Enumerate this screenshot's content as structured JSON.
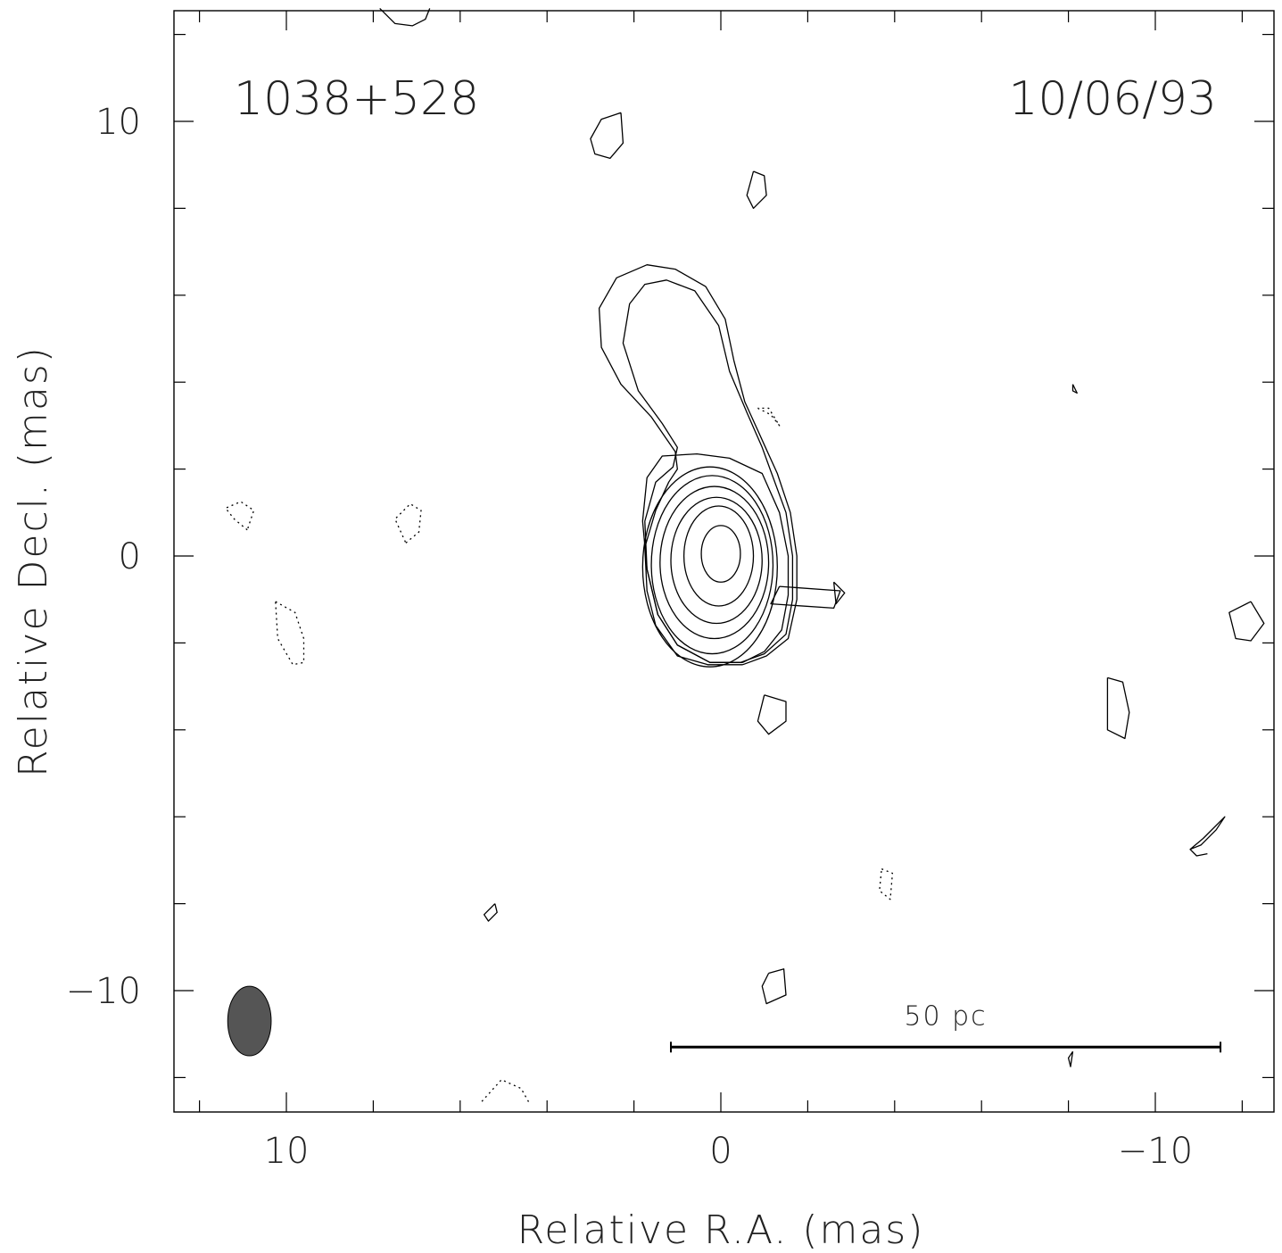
{
  "chart_data": {
    "type": "contour",
    "source_label": "1038+528",
    "date_label": "10/06/93",
    "xlabel": "Relative R.A. (mas)",
    "ylabel": "Relative Decl. (mas)",
    "xlim": [
      12.6,
      -12.7
    ],
    "ylim": [
      -12.8,
      12.6
    ],
    "x_ticks": [
      {
        "value": 10,
        "label": "10"
      },
      {
        "value": 0,
        "label": "0"
      },
      {
        "value": -10,
        "label": "−10"
      }
    ],
    "y_ticks": [
      {
        "value": 10,
        "label": "10"
      },
      {
        "value": 0,
        "label": "0"
      },
      {
        "value": -10,
        "label": "−10"
      }
    ],
    "minor_tick_step": 2,
    "peak": {
      "x": 0.0,
      "y": 0.05
    },
    "core_contours": [
      {
        "cx": 0.0,
        "cy": 0.05,
        "rx": 0.45,
        "ry": 0.65
      },
      {
        "cx": 0.05,
        "cy": 0.0,
        "rx": 0.8,
        "ry": 1.15
      },
      {
        "cx": 0.1,
        "cy": -0.1,
        "rx": 1.05,
        "ry": 1.45
      },
      {
        "cx": 0.15,
        "cy": -0.15,
        "rx": 1.25,
        "ry": 1.75
      },
      {
        "cx": 0.2,
        "cy": -0.2,
        "rx": 1.4,
        "ry": 2.05
      },
      {
        "cx": 0.25,
        "cy": -0.25,
        "rx": 1.55,
        "ry": 2.3
      }
    ],
    "extended_contours": [
      [
        [
          -0.5,
          -2.45
        ],
        [
          -1.0,
          -2.2
        ],
        [
          -1.4,
          -1.7
        ],
        [
          -1.55,
          -0.9
        ],
        [
          -1.55,
          0.0
        ],
        [
          -1.35,
          1.0
        ],
        [
          -0.95,
          1.9
        ],
        [
          -0.2,
          2.25
        ],
        [
          0.55,
          2.35
        ],
        [
          1.35,
          2.3
        ],
        [
          1.7,
          1.8
        ],
        [
          1.8,
          0.8
        ],
        [
          1.7,
          -0.3
        ],
        [
          1.45,
          -1.35
        ],
        [
          1.0,
          -2.05
        ],
        [
          0.25,
          -2.45
        ],
        [
          -0.5,
          -2.45
        ]
      ],
      [
        [
          -0.45,
          -2.45
        ],
        [
          -1.0,
          -2.25
        ],
        [
          -1.5,
          -1.8
        ],
        [
          -1.65,
          -1.0
        ],
        [
          -1.65,
          0.0
        ],
        [
          -1.5,
          1.0
        ],
        [
          -1.15,
          1.95
        ],
        [
          -0.95,
          2.5
        ],
        [
          -0.6,
          3.3
        ],
        [
          -0.2,
          4.25
        ],
        [
          0.05,
          5.3
        ],
        [
          0.6,
          6.1
        ],
        [
          1.25,
          6.35
        ],
        [
          1.75,
          6.25
        ],
        [
          2.1,
          5.8
        ],
        [
          2.25,
          4.9
        ],
        [
          1.9,
          3.8
        ],
        [
          1.35,
          3.05
        ],
        [
          1.0,
          2.5
        ],
        [
          1.1,
          2.05
        ],
        [
          1.5,
          1.7
        ],
        [
          1.75,
          0.8
        ],
        [
          1.7,
          -0.3
        ],
        [
          1.45,
          -1.35
        ],
        [
          1.0,
          -2.05
        ],
        [
          0.25,
          -2.45
        ],
        [
          -0.45,
          -2.45
        ]
      ],
      [
        [
          -0.5,
          -2.5
        ],
        [
          -1.05,
          -2.3
        ],
        [
          -1.55,
          -1.9
        ],
        [
          -1.75,
          -1.0
        ],
        [
          -1.75,
          0.0
        ],
        [
          -1.6,
          1.0
        ],
        [
          -1.3,
          1.9
        ],
        [
          -1.05,
          2.45
        ],
        [
          -0.8,
          3.0
        ],
        [
          -0.55,
          3.55
        ],
        [
          -0.3,
          4.5
        ],
        [
          -0.1,
          5.45
        ],
        [
          0.35,
          6.2
        ],
        [
          1.05,
          6.6
        ],
        [
          1.7,
          6.7
        ],
        [
          2.4,
          6.4
        ],
        [
          2.8,
          5.7
        ],
        [
          2.75,
          4.8
        ],
        [
          2.3,
          3.95
        ],
        [
          1.6,
          3.2
        ],
        [
          1.05,
          2.4
        ],
        [
          1.0,
          2.0
        ],
        [
          1.2,
          1.7
        ],
        [
          1.5,
          1.05
        ],
        [
          1.75,
          0.2
        ],
        [
          1.7,
          -0.8
        ],
        [
          1.5,
          -1.6
        ],
        [
          1.0,
          -2.3
        ],
        [
          0.3,
          -2.5
        ],
        [
          -0.5,
          -2.5
        ]
      ]
    ],
    "noise_contours_positive": [
      [
        [
          6.7,
          12.6
        ],
        [
          6.8,
          12.35
        ],
        [
          7.1,
          12.2
        ],
        [
          7.5,
          12.25
        ],
        [
          7.85,
          12.6
        ]
      ],
      [
        [
          2.3,
          10.2
        ],
        [
          2.75,
          10.05
        ],
        [
          3.0,
          9.6
        ],
        [
          2.9,
          9.25
        ],
        [
          2.55,
          9.15
        ],
        [
          2.25,
          9.5
        ],
        [
          2.3,
          10.2
        ]
      ],
      [
        [
          -0.75,
          8.85
        ],
        [
          -1.0,
          8.75
        ],
        [
          -1.05,
          8.3
        ],
        [
          -0.75,
          8.0
        ],
        [
          -0.6,
          8.3
        ],
        [
          -0.75,
          8.85
        ]
      ],
      [
        [
          -1.35,
          -0.7
        ],
        [
          -1.15,
          -1.1
        ],
        [
          -2.6,
          -1.2
        ],
        [
          -2.75,
          -0.8
        ],
        [
          -1.35,
          -0.7
        ]
      ],
      [
        [
          -1.0,
          -3.2
        ],
        [
          -1.5,
          -3.35
        ],
        [
          -1.5,
          -3.8
        ],
        [
          -1.1,
          -4.1
        ],
        [
          -0.85,
          -3.8
        ],
        [
          -1.0,
          -3.2
        ]
      ],
      [
        [
          -2.6,
          -0.6
        ],
        [
          -2.85,
          -0.85
        ],
        [
          -2.65,
          -1.1
        ],
        [
          -2.6,
          -0.6
        ]
      ],
      [
        [
          5.2,
          -8.0
        ],
        [
          5.45,
          -8.25
        ],
        [
          5.35,
          -8.4
        ],
        [
          5.15,
          -8.2
        ],
        [
          5.2,
          -8.0
        ]
      ],
      [
        [
          -1.1,
          -9.6
        ],
        [
          -1.45,
          -9.5
        ],
        [
          -1.5,
          -10.1
        ],
        [
          -1.05,
          -10.3
        ],
        [
          -0.95,
          -9.9
        ],
        [
          -1.1,
          -9.6
        ]
      ],
      [
        [
          -8.1,
          3.95
        ],
        [
          -8.2,
          3.75
        ],
        [
          -8.1,
          3.8
        ],
        [
          -8.1,
          3.95
        ]
      ],
      [
        [
          -8.9,
          -2.8
        ],
        [
          -9.25,
          -2.9
        ],
        [
          -9.4,
          -3.6
        ],
        [
          -9.3,
          -4.2
        ],
        [
          -8.9,
          -4.0
        ],
        [
          -8.9,
          -2.8
        ]
      ],
      [
        [
          -12.2,
          -1.05
        ],
        [
          -11.7,
          -1.3
        ],
        [
          -11.85,
          -1.9
        ],
        [
          -12.2,
          -1.95
        ],
        [
          -12.5,
          -1.55
        ],
        [
          -12.2,
          -1.05
        ]
      ],
      [
        [
          -10.8,
          -6.75
        ],
        [
          -11.1,
          -6.5
        ],
        [
          -11.6,
          -6.0
        ],
        [
          -11.4,
          -6.3
        ],
        [
          -11.05,
          -6.65
        ],
        [
          -10.8,
          -6.75
        ],
        [
          -10.95,
          -6.9
        ],
        [
          -11.2,
          -6.85
        ]
      ],
      [
        [
          -8.1,
          -11.4
        ],
        [
          -8.0,
          -11.55
        ],
        [
          -8.05,
          -11.75
        ],
        [
          -8.1,
          -11.4
        ]
      ]
    ],
    "noise_contours_negative": [
      [
        [
          10.9,
          0.6
        ],
        [
          11.2,
          0.85
        ],
        [
          11.4,
          1.1
        ],
        [
          11.05,
          1.25
        ],
        [
          10.75,
          1.05
        ],
        [
          10.9,
          0.6
        ]
      ],
      [
        [
          7.25,
          0.3
        ],
        [
          6.95,
          0.55
        ],
        [
          6.9,
          1.05
        ],
        [
          7.15,
          1.2
        ],
        [
          7.5,
          0.85
        ],
        [
          7.25,
          0.3
        ]
      ],
      [
        [
          10.25,
          -1.05
        ],
        [
          9.8,
          -1.3
        ],
        [
          9.6,
          -1.9
        ],
        [
          9.6,
          -2.45
        ],
        [
          9.85,
          -2.5
        ],
        [
          10.2,
          -1.9
        ],
        [
          10.25,
          -1.05
        ]
      ],
      [
        [
          -0.85,
          3.4
        ],
        [
          -1.15,
          3.25
        ],
        [
          -1.35,
          3.0
        ],
        [
          -1.1,
          3.4
        ],
        [
          -0.85,
          3.4
        ]
      ],
      [
        [
          -3.7,
          -7.2
        ],
        [
          -3.95,
          -7.3
        ],
        [
          -3.9,
          -7.9
        ],
        [
          -3.65,
          -7.7
        ],
        [
          -3.7,
          -7.2
        ]
      ],
      [
        [
          5.5,
          -12.55
        ],
        [
          5.05,
          -12.05
        ],
        [
          4.6,
          -12.25
        ],
        [
          4.4,
          -12.6
        ]
      ]
    ],
    "beam": {
      "x": 10.85,
      "y": -10.7,
      "major_mas": 1.6,
      "minor_mas": 1.0,
      "pa_deg": 0,
      "color": "#555555"
    },
    "scale_bar": {
      "label": "50 pc",
      "from_x": 1.15,
      "to_x": -11.5,
      "y": -11.3
    }
  }
}
